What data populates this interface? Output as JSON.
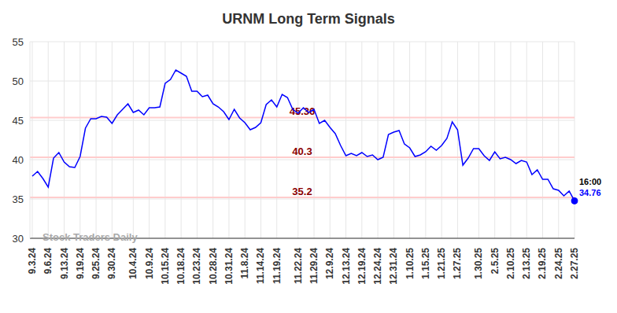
{
  "chart_data": {
    "type": "line",
    "title": "URNM Long Term Signals",
    "watermark": "Stock Traders Daily",
    "last_label": "16:00",
    "categories": [
      "9.3.24",
      null,
      null,
      "9.6.24",
      null,
      null,
      "9.13.24",
      null,
      null,
      "9.19.24",
      null,
      null,
      "9.25.24",
      null,
      null,
      "9.30.24",
      null,
      null,
      null,
      "10.4.24",
      null,
      null,
      "10.9.24",
      null,
      null,
      "10.15.24",
      null,
      null,
      "10.18.24",
      null,
      null,
      "10.23.24",
      null,
      null,
      "10.28.24",
      null,
      null,
      "10.31.24",
      null,
      null,
      "11.8.24",
      null,
      null,
      "11.14.24",
      null,
      null,
      "11.19.24",
      null,
      null,
      null,
      "11.22.24",
      null,
      null,
      "11.29.24",
      null,
      null,
      "12.9.24",
      null,
      null,
      "12.13.24",
      null,
      null,
      "12.19.24",
      null,
      null,
      "12.24.24",
      null,
      null,
      "12.31.24",
      null,
      null,
      "1.10.25",
      null,
      null,
      "1.15.25",
      null,
      null,
      "1.21.25",
      null,
      null,
      "1.27.25",
      null,
      null,
      null,
      "1.30.25",
      null,
      null,
      "2.5.25",
      null,
      null,
      "2.10.25",
      null,
      null,
      "2.13.25",
      null,
      null,
      "2.19.25",
      null,
      null,
      "2.24.25",
      null,
      null,
      "2.27.25"
    ],
    "values": [
      37.9,
      38.5,
      37.6,
      36.5,
      40.2,
      40.9,
      39.7,
      39.1,
      39.0,
      40.4,
      44.0,
      45.2,
      45.2,
      45.5,
      45.4,
      44.6,
      45.7,
      46.4,
      47.1,
      46.0,
      46.3,
      45.7,
      46.6,
      46.6,
      46.7,
      49.7,
      50.2,
      51.4,
      51.0,
      50.6,
      48.7,
      48.7,
      48.0,
      48.2,
      47.1,
      46.7,
      46.1,
      45.1,
      46.4,
      45.3,
      44.7,
      43.8,
      44.1,
      44.7,
      47.0,
      47.6,
      46.7,
      48.3,
      47.9,
      46.4,
      45.9,
      46.6,
      46.0,
      46.4,
      44.6,
      45.0,
      44.1,
      43.3,
      41.8,
      40.5,
      40.8,
      40.5,
      40.9,
      40.4,
      40.6,
      40.0,
      40.3,
      43.2,
      43.5,
      43.7,
      42.0,
      41.5,
      40.4,
      40.6,
      41.0,
      41.7,
      41.2,
      41.8,
      42.7,
      44.8,
      43.8,
      39.3,
      40.2,
      41.4,
      41.4,
      40.5,
      39.9,
      41.0,
      40.1,
      40.3,
      40.0,
      39.5,
      39.9,
      39.7,
      38.1,
      38.7,
      37.5,
      37.5,
      36.3,
      36.1,
      35.4,
      36.0,
      34.76
    ],
    "color": "#0000ff",
    "levels": [
      45.36,
      40.3,
      35.2
    ],
    "ylim": [
      30,
      55
    ],
    "yticks": [
      30,
      35,
      40,
      45,
      50,
      55
    ],
    "grid": true
  }
}
